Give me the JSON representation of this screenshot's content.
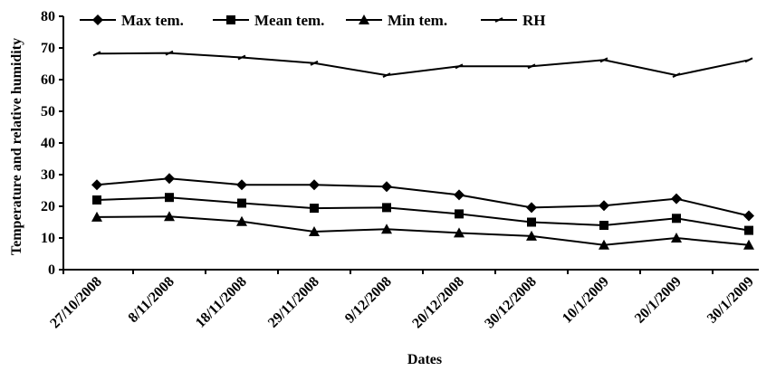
{
  "chart_data": {
    "type": "line",
    "title": "",
    "xlabel": "Dates",
    "ylabel": "Temperature and relative humidity",
    "ylim": [
      0,
      80
    ],
    "yticks": [
      "0",
      "10",
      "20",
      "30",
      "40",
      "50",
      "60",
      "70",
      "80"
    ],
    "categories": [
      "27/10/2008",
      "8/11/2008",
      "18/11/2008",
      "29/11/2008",
      "9/12/2008",
      "20/12/2008",
      "30/12/2008",
      "10/1/2009",
      "20/1/2009",
      "30/1/2009"
    ],
    "grid": false,
    "legend_position": "top",
    "series": [
      {
        "name": "Max tem.",
        "marker": "diamond",
        "values": [
          26.8,
          28.8,
          26.8,
          26.8,
          26.2,
          23.6,
          19.6,
          20.2,
          22.4,
          17.0
        ]
      },
      {
        "name": "Mean tem.",
        "marker": "square",
        "values": [
          22.0,
          22.8,
          21.0,
          19.4,
          19.6,
          17.6,
          15.0,
          14.0,
          16.2,
          12.4
        ]
      },
      {
        "name": "Min tem.",
        "marker": "triangle",
        "values": [
          16.6,
          16.8,
          15.2,
          12.0,
          12.8,
          11.6,
          10.6,
          7.8,
          10.0,
          7.8
        ]
      },
      {
        "name": "RH",
        "marker": "dash",
        "values": [
          68.2,
          68.4,
          67.0,
          65.2,
          61.4,
          64.2,
          64.2,
          66.2,
          61.4,
          66.2
        ]
      }
    ]
  }
}
